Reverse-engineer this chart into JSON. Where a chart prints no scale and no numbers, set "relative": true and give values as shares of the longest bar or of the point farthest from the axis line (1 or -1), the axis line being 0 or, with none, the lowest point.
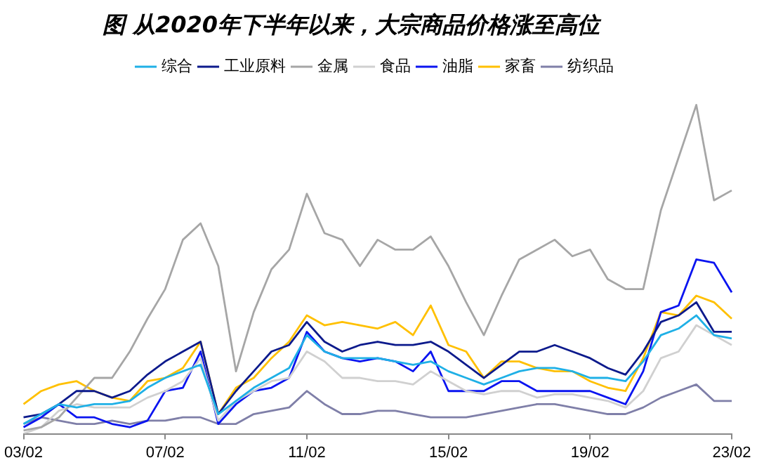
{
  "chart_data": {
    "type": "line",
    "title": "图 从2020年下半年以来，大宗商品价格涨至高位",
    "relative": true,
    "legend": "top",
    "grid": false,
    "marker": "none",
    "line_style": "solid",
    "categories": [
      "03/02",
      null,
      null,
      null,
      null,
      null,
      null,
      null,
      "07/02",
      null,
      null,
      null,
      null,
      null,
      null,
      null,
      "11/02",
      null,
      null,
      null,
      null,
      null,
      null,
      null,
      "15/02",
      null,
      null,
      null,
      null,
      null,
      null,
      null,
      "19/02",
      null,
      null,
      null,
      null,
      null,
      null,
      null,
      "23/02"
    ],
    "series": [
      {
        "name": "综合",
        "color": "#1fb0e6",
        "values": [
          0.03,
          0.06,
          0.09,
          0.08,
          0.09,
          0.09,
          0.1,
          0.14,
          0.17,
          0.19,
          0.21,
          0.06,
          0.1,
          0.14,
          0.17,
          0.2,
          0.3,
          0.25,
          0.23,
          0.23,
          0.23,
          0.22,
          0.21,
          0.22,
          0.19,
          0.17,
          0.15,
          0.17,
          0.19,
          0.2,
          0.2,
          0.19,
          0.17,
          0.17,
          0.16,
          0.22,
          0.3,
          0.32,
          0.36,
          0.3,
          0.29
        ]
      },
      {
        "name": "工业原料",
        "color": "#0c1a8c",
        "values": [
          0.05,
          0.06,
          0.09,
          0.13,
          0.13,
          0.11,
          0.13,
          0.18,
          0.22,
          0.25,
          0.28,
          0.06,
          0.13,
          0.19,
          0.25,
          0.27,
          0.34,
          0.28,
          0.25,
          0.27,
          0.28,
          0.27,
          0.27,
          0.28,
          0.25,
          0.21,
          0.17,
          0.21,
          0.25,
          0.25,
          0.27,
          0.25,
          0.23,
          0.2,
          0.18,
          0.25,
          0.34,
          0.36,
          0.4,
          0.31,
          0.31
        ]
      },
      {
        "name": "金属",
        "color": "#a6a6a6",
        "values": [
          0.01,
          0.02,
          0.05,
          0.11,
          0.17,
          0.17,
          0.25,
          0.35,
          0.44,
          0.59,
          0.64,
          0.51,
          0.19,
          0.37,
          0.5,
          0.56,
          0.73,
          0.61,
          0.59,
          0.51,
          0.59,
          0.56,
          0.56,
          0.6,
          0.51,
          0.4,
          0.3,
          0.42,
          0.53,
          0.56,
          0.59,
          0.54,
          0.56,
          0.47,
          0.44,
          0.44,
          0.68,
          0.84,
          1,
          0.71,
          0.74
        ]
      },
      {
        "name": "食品",
        "color": "#d0d0d0",
        "values": [
          0.0,
          0.02,
          0.07,
          0.09,
          0.08,
          0.08,
          0.08,
          0.11,
          0.13,
          0.16,
          0.23,
          0.04,
          0.1,
          0.13,
          0.16,
          0.17,
          0.25,
          0.22,
          0.17,
          0.17,
          0.16,
          0.16,
          0.15,
          0.19,
          0.16,
          0.13,
          0.12,
          0.13,
          0.13,
          0.11,
          0.12,
          0.12,
          0.11,
          0.1,
          0.08,
          0.13,
          0.23,
          0.25,
          0.33,
          0.3,
          0.27
        ]
      },
      {
        "name": "油脂",
        "color": "#0a14f0",
        "values": [
          0.02,
          0.05,
          0.09,
          0.05,
          0.05,
          0.03,
          0.02,
          0.04,
          0.13,
          0.14,
          0.25,
          0.03,
          0.09,
          0.13,
          0.14,
          0.17,
          0.31,
          0.25,
          0.23,
          0.22,
          0.23,
          0.22,
          0.19,
          0.25,
          0.13,
          0.13,
          0.13,
          0.16,
          0.16,
          0.13,
          0.13,
          0.13,
          0.13,
          0.11,
          0.09,
          0.19,
          0.37,
          0.39,
          0.53,
          0.52,
          0.43
        ]
      },
      {
        "name": "家畜",
        "color": "#ffc000",
        "values": [
          0.09,
          0.13,
          0.15,
          0.16,
          0.13,
          0.11,
          0.1,
          0.16,
          0.17,
          0.2,
          0.28,
          0.06,
          0.14,
          0.17,
          0.23,
          0.28,
          0.36,
          0.33,
          0.34,
          0.33,
          0.32,
          0.34,
          0.3,
          0.39,
          0.27,
          0.25,
          0.17,
          0.22,
          0.22,
          0.2,
          0.19,
          0.19,
          0.16,
          0.14,
          0.13,
          0.23,
          0.37,
          0.36,
          0.42,
          0.4,
          0.35
        ]
      },
      {
        "name": "纺织品",
        "color": "#7f7fa8",
        "values": [
          0.03,
          0.05,
          0.04,
          0.03,
          0.03,
          0.04,
          0.03,
          0.04,
          0.04,
          0.05,
          0.05,
          0.03,
          0.03,
          0.06,
          0.07,
          0.08,
          0.13,
          0.09,
          0.06,
          0.06,
          0.07,
          0.07,
          0.06,
          0.05,
          0.05,
          0.05,
          0.06,
          0.07,
          0.08,
          0.09,
          0.09,
          0.08,
          0.07,
          0.06,
          0.06,
          0.08,
          0.11,
          0.13,
          0.15,
          0.1,
          0.1
        ]
      }
    ]
  }
}
